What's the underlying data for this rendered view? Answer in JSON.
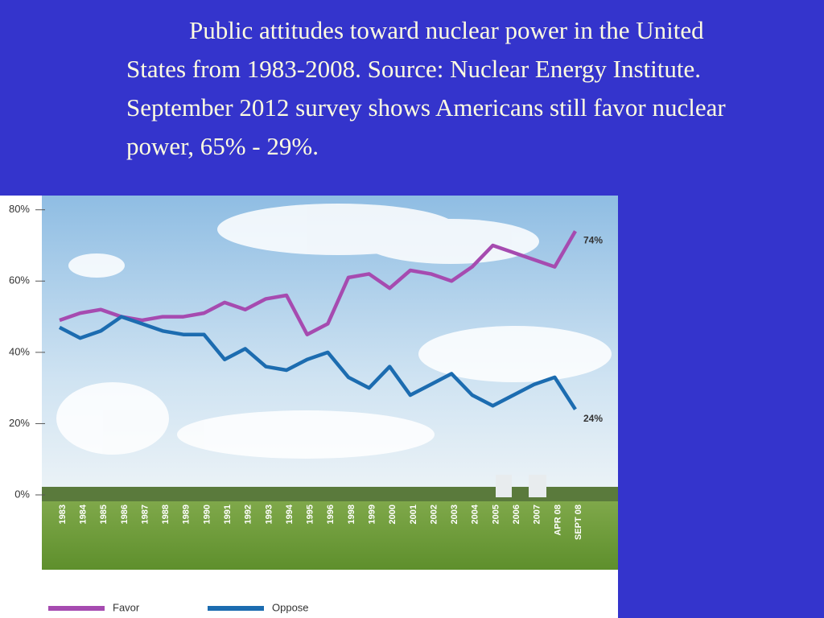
{
  "slide_title": "Public attitudes toward nuclear power in the United States from 1983-2008.  Source:  Nuclear Energy Institute.  September 2012 survey shows Americans still favor nuclear power, 65% - 29%.",
  "chart_data": {
    "type": "line",
    "categories": [
      "1983",
      "1984",
      "1985",
      "1986",
      "1987",
      "1988",
      "1989",
      "1990",
      "1991",
      "1992",
      "1993",
      "1994",
      "1995",
      "1996",
      "1998",
      "1999",
      "2000",
      "2001",
      "2002",
      "2003",
      "2004",
      "2005",
      "2006",
      "2007",
      "APR 08",
      "SEPT 08"
    ],
    "series": [
      {
        "name": "Favor",
        "color": "#a64bb0",
        "values": [
          49,
          51,
          52,
          50,
          49,
          50,
          50,
          51,
          54,
          52,
          55,
          56,
          45,
          48,
          61,
          62,
          58,
          63,
          62,
          60,
          64,
          70,
          68,
          66,
          64,
          74
        ],
        "value_labels": [
          null,
          null,
          null,
          null,
          null,
          null,
          null,
          null,
          null,
          null,
          null,
          null,
          null,
          null,
          null,
          null,
          null,
          null,
          null,
          null,
          null,
          null,
          null,
          null,
          null,
          "74%"
        ]
      },
      {
        "name": "Oppose",
        "color": "#1c6cb0",
        "values": [
          47,
          44,
          46,
          50,
          48,
          46,
          45,
          45,
          38,
          41,
          36,
          35,
          38,
          40,
          33,
          30,
          36,
          28,
          31,
          34,
          28,
          25,
          28,
          31,
          33,
          24
        ],
        "value_labels": [
          null,
          null,
          null,
          null,
          null,
          null,
          null,
          null,
          null,
          null,
          null,
          null,
          null,
          null,
          null,
          null,
          null,
          null,
          null,
          null,
          null,
          null,
          null,
          null,
          null,
          "24%"
        ]
      }
    ],
    "ylim": [
      0,
      84
    ],
    "yticks": [
      {
        "value": 0,
        "label": "0%"
      },
      {
        "value": 20,
        "label": "20%"
      },
      {
        "value": 40,
        "label": "40%"
      },
      {
        "value": 60,
        "label": "60%"
      },
      {
        "value": 80,
        "label": "80%"
      }
    ]
  }
}
